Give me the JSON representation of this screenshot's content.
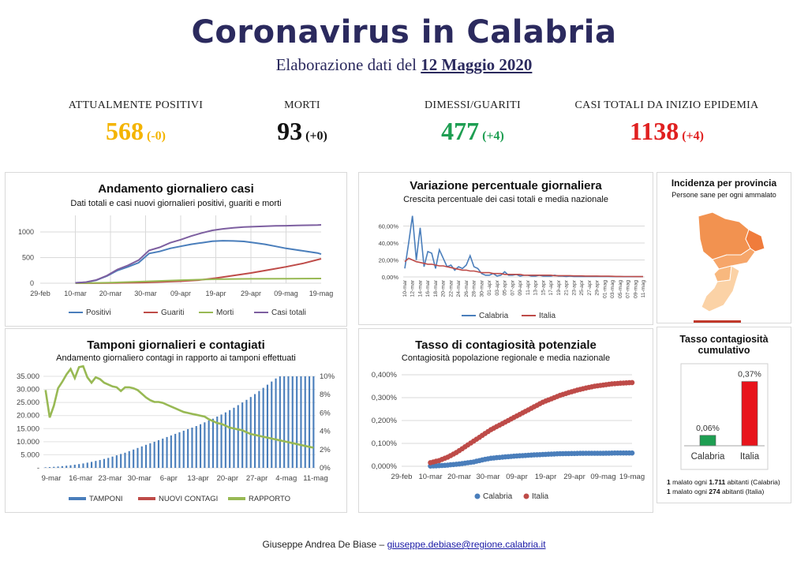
{
  "header": {
    "title": "Coronavirus in Calabria",
    "subtitle_prefix": "Elaborazione dati del",
    "subtitle_date": "12 Maggio 2020"
  },
  "stats": [
    {
      "label": "ATTUALMENTE POSITIVI",
      "value": "568",
      "delta": "(-0)",
      "color": "#f4b400"
    },
    {
      "label": "MORTI",
      "value": "93",
      "delta": "(+0)",
      "color": "#111111"
    },
    {
      "label": "DIMESSI/GUARITI",
      "value": "477",
      "delta": "(+4)",
      "color": "#1e9e52"
    },
    {
      "label": "CASI TOTALI DA INIZIO EPIDEMIA",
      "value": "1138",
      "delta": "(+4)",
      "color": "#e02020"
    }
  ],
  "colors": {
    "blue": "#4a7ebb",
    "red": "#be4b48",
    "green": "#98b954",
    "purple": "#7d5fa0",
    "accent": "#2b2a5e"
  },
  "chart_data": [
    {
      "id": "andamento",
      "type": "line",
      "title": "Andamento giornaliero casi",
      "subtitle": "Dati totali e casi nuovi giornalieri positivi, guariti e morti",
      "xticks": [
        "29-feb",
        "10-mar",
        "20-mar",
        "30-mar",
        "09-apr",
        "19-apr",
        "29-apr",
        "09-mag",
        "19-mag"
      ],
      "yticks": [
        "0",
        "500",
        "1000"
      ],
      "ylim": [
        0,
        1200
      ],
      "legend_position": "bottom",
      "series": [
        {
          "name": "Positivi",
          "points": [
            [
              10,
              8
            ],
            [
              13,
              20
            ],
            [
              16,
              60
            ],
            [
              19,
              140
            ],
            [
              22,
              250
            ],
            [
              25,
              320
            ],
            [
              28,
              400
            ],
            [
              31,
              580
            ],
            [
              34,
              620
            ],
            [
              37,
              680
            ],
            [
              40,
              720
            ],
            [
              43,
              760
            ],
            [
              46,
              790
            ],
            [
              49,
              820
            ],
            [
              52,
              830
            ],
            [
              55,
              825
            ],
            [
              58,
              815
            ],
            [
              61,
              790
            ],
            [
              64,
              760
            ],
            [
              67,
              720
            ],
            [
              70,
              680
            ],
            [
              73,
              650
            ],
            [
              76,
              620
            ],
            [
              79,
              590
            ],
            [
              80,
              568
            ]
          ]
        },
        {
          "name": "Guariti",
          "points": [
            [
              10,
              0
            ],
            [
              20,
              3
            ],
            [
              30,
              15
            ],
            [
              40,
              40
            ],
            [
              45,
              60
            ],
            [
              50,
              100
            ],
            [
              55,
              150
            ],
            [
              60,
              200
            ],
            [
              65,
              260
            ],
            [
              70,
              320
            ],
            [
              75,
              390
            ],
            [
              80,
              477
            ]
          ]
        },
        {
          "name": "Morti",
          "points": [
            [
              10,
              0
            ],
            [
              20,
              10
            ],
            [
              30,
              35
            ],
            [
              40,
              60
            ],
            [
              50,
              78
            ],
            [
              60,
              86
            ],
            [
              70,
              90
            ],
            [
              80,
              93
            ]
          ]
        },
        {
          "name": "Casi totali",
          "points": [
            [
              10,
              8
            ],
            [
              13,
              22
            ],
            [
              16,
              65
            ],
            [
              19,
              150
            ],
            [
              22,
              270
            ],
            [
              25,
              350
            ],
            [
              28,
              450
            ],
            [
              31,
              640
            ],
            [
              34,
              700
            ],
            [
              37,
              790
            ],
            [
              40,
              850
            ],
            [
              43,
              920
            ],
            [
              46,
              980
            ],
            [
              49,
              1030
            ],
            [
              52,
              1060
            ],
            [
              55,
              1080
            ],
            [
              58,
              1095
            ],
            [
              61,
              1105
            ],
            [
              64,
              1112
            ],
            [
              67,
              1118
            ],
            [
              70,
              1122
            ],
            [
              73,
              1127
            ],
            [
              76,
              1131
            ],
            [
              79,
              1136
            ],
            [
              80,
              1138
            ]
          ]
        }
      ]
    },
    {
      "id": "variazione",
      "type": "line",
      "title": "Variazione percentuale giornaliera",
      "subtitle": "Crescita percentuale dei casi totali e media nazionale",
      "yticks": [
        "0,00%",
        "20,00%",
        "40,00%",
        "60,00%"
      ],
      "ylim": [
        0,
        80
      ],
      "xticks": [
        "10-mar",
        "12-mar",
        "14-mar",
        "16-mar",
        "18-mar",
        "20-mar",
        "22-mar",
        "24-mar",
        "26-mar",
        "28-mar",
        "30-mar",
        "01-apr",
        "03-apr",
        "05-apr",
        "07-apr",
        "09-apr",
        "11-apr",
        "13-apr",
        "15-apr",
        "17-apr",
        "19-apr",
        "21-apr",
        "23-apr",
        "25-apr",
        "27-apr",
        "29-apr",
        "01-mag",
        "03-mag",
        "05-mag",
        "07-mag",
        "09-mag",
        "11-mag"
      ],
      "legend_position": "bottom",
      "series": [
        {
          "name": "Calabria",
          "values": [
            10,
            40,
            72,
            20,
            58,
            12,
            30,
            28,
            10,
            32,
            22,
            12,
            14,
            8,
            12,
            10,
            14,
            25,
            12,
            10,
            4,
            2,
            2,
            4,
            1,
            2,
            6,
            2,
            2,
            3,
            1,
            2,
            2,
            1,
            1,
            2,
            1,
            1,
            1,
            2,
            1,
            1,
            0.5,
            1,
            0.5,
            0.5,
            0.5,
            0.5,
            0.5,
            0.5,
            0.5,
            0.5,
            0.5,
            0.5,
            0.4,
            0.4,
            0.4,
            0.3,
            0.3,
            0.3,
            0.3,
            0.3,
            0.3
          ]
        },
        {
          "name": "Italia",
          "values": [
            18,
            22,
            20,
            18,
            17,
            16,
            15,
            15,
            14,
            13,
            13,
            12,
            11,
            10,
            9,
            8,
            8,
            7,
            7,
            6,
            5,
            5,
            5,
            4,
            4,
            4,
            3,
            3,
            3,
            3,
            3,
            2,
            2,
            2,
            2,
            2,
            2,
            2,
            2,
            1.5,
            1.5,
            1.5,
            1.5,
            1.5,
            1.2,
            1.2,
            1.2,
            1,
            1,
            1,
            1,
            0.8,
            0.8,
            0.8,
            0.7,
            0.6,
            0.6,
            0.5,
            0.5,
            0.5,
            0.4,
            0.4,
            0.4
          ]
        }
      ]
    },
    {
      "id": "incidenza",
      "type": "map",
      "title": "Incidenza per provincia",
      "subtitle": "Persone sane per ogni ammalato"
    },
    {
      "id": "tamponi",
      "type": "bar",
      "title": "Tamponi giornalieri e contagiati",
      "subtitle": "Andamento giornaliero contagi in rapporto ai tamponi effettuati",
      "yticks": [
        "-",
        "5.000",
        "10.000",
        "15.000",
        "20.000",
        "25.000",
        "30.000",
        "35.000"
      ],
      "y2ticks": [
        "0%",
        "2%",
        "4%",
        "6%",
        "8%",
        "10%"
      ],
      "ylim": [
        0,
        35000
      ],
      "y2lim": [
        0,
        10
      ],
      "xticks": [
        "9-mar",
        "16-mar",
        "23-mar",
        "30-mar",
        "6-apr",
        "13-apr",
        "20-apr",
        "27-apr",
        "4-mag",
        "11-mag"
      ],
      "legend_position": "bottom",
      "series": [
        {
          "name": "TAMPONI",
          "values": [
            200,
            300,
            400,
            500,
            650,
            800,
            1000,
            1200,
            1450,
            1700,
            2000,
            2300,
            2650,
            3000,
            3400,
            3800,
            4300,
            4800,
            5300,
            5800,
            6400,
            7000,
            7600,
            8200,
            8800,
            9400,
            10000,
            10600,
            11200,
            11800,
            12400,
            13000,
            13600,
            14200,
            14800,
            15400,
            16000,
            16700,
            17400,
            18100,
            18800,
            19600,
            20400,
            21200,
            22100,
            23000,
            24000,
            25000,
            26000,
            27100,
            28200,
            29400,
            30600,
            31800,
            33000,
            34200,
            35000,
            35000,
            35000,
            35000,
            35000,
            35000,
            35000,
            35000,
            35000
          ]
        },
        {
          "name": "NUOVI CONTAGI",
          "values": []
        },
        {
          "name": "RAPPORTO",
          "values": [
            8.5,
            5.5,
            6.8,
            8.7,
            9.4,
            10.2,
            10.8,
            9.8,
            11,
            11.1,
            9.9,
            9.3,
            9.9,
            9.7,
            9.3,
            9.1,
            8.9,
            8.8,
            8.4,
            8.8,
            8.8,
            8.7,
            8.5,
            8.1,
            7.7,
            7.4,
            7.2,
            7.2,
            7.1,
            6.9,
            6.7,
            6.5,
            6.3,
            6.1,
            6.0,
            5.9,
            5.8,
            5.7,
            5.6,
            5.3,
            5.1,
            4.9,
            4.8,
            4.6,
            4.4,
            4.3,
            4.2,
            4.1,
            3.9,
            3.7,
            3.6,
            3.5,
            3.4,
            3.3,
            3.2,
            3.1,
            3.0,
            2.9,
            2.8,
            2.7,
            2.6,
            2.5,
            2.4,
            2.3,
            2.2
          ]
        }
      ]
    },
    {
      "id": "tasso",
      "type": "scatter",
      "title": "Tasso di contagiosità potenziale",
      "subtitle": "Contagiosità popolazione regionale e media nazionale",
      "yticks": [
        "0,000%",
        "0,100%",
        "0,200%",
        "0,300%",
        "0,400%"
      ],
      "ylim": [
        0,
        0.4
      ],
      "xticks": [
        "29-feb",
        "10-mar",
        "20-mar",
        "30-mar",
        "09-apr",
        "19-apr",
        "29-apr",
        "09-mag",
        "19-mag"
      ],
      "legend_position": "bottom",
      "series": [
        {
          "name": "Calabria",
          "points": [
            [
              10,
              0.001
            ],
            [
              15,
              0.004
            ],
            [
              20,
              0.01
            ],
            [
              25,
              0.019
            ],
            [
              28,
              0.028
            ],
            [
              31,
              0.035
            ],
            [
              35,
              0.04
            ],
            [
              40,
              0.045
            ],
            [
              45,
              0.049
            ],
            [
              50,
              0.052
            ],
            [
              55,
              0.055
            ],
            [
              60,
              0.056
            ],
            [
              65,
              0.057
            ],
            [
              70,
              0.057
            ],
            [
              75,
              0.058
            ],
            [
              80,
              0.058
            ]
          ]
        },
        {
          "name": "Italia",
          "points": [
            [
              10,
              0.016
            ],
            [
              13,
              0.025
            ],
            [
              16,
              0.04
            ],
            [
              19,
              0.06
            ],
            [
              22,
              0.085
            ],
            [
              25,
              0.11
            ],
            [
              28,
              0.135
            ],
            [
              31,
              0.16
            ],
            [
              34,
              0.18
            ],
            [
              37,
              0.2
            ],
            [
              40,
              0.22
            ],
            [
              43,
              0.24
            ],
            [
              46,
              0.26
            ],
            [
              49,
              0.28
            ],
            [
              52,
              0.295
            ],
            [
              55,
              0.31
            ],
            [
              58,
              0.322
            ],
            [
              61,
              0.333
            ],
            [
              64,
              0.342
            ],
            [
              67,
              0.35
            ],
            [
              70,
              0.355
            ],
            [
              73,
              0.36
            ],
            [
              76,
              0.363
            ],
            [
              80,
              0.366
            ]
          ]
        }
      ]
    },
    {
      "id": "cumulativo",
      "type": "bar",
      "title": "Tasso contagiosità cumulativo",
      "categories": [
        "Calabria",
        "Italia"
      ],
      "values": [
        0.06,
        0.37
      ],
      "labels": [
        "0,06%",
        "0,37%"
      ],
      "ylim": [
        0,
        0.4
      ],
      "colors": [
        "#1e9e52",
        "#e8141c"
      ]
    }
  ],
  "notes": {
    "calabria_prefix": "1",
    "calabria_mid": " malato ogni ",
    "calabria_value": "1.711",
    "calabria_suffix": " abitanti (Calabria)",
    "italia_prefix": "1",
    "italia_mid": " malato ogni ",
    "italia_value": "274",
    "italia_suffix": " abitanti (Italia)"
  },
  "footer": {
    "author": "Giuseppe Andrea De Biase –",
    "email": "giuseppe.debiase@regione.calabria.it"
  }
}
